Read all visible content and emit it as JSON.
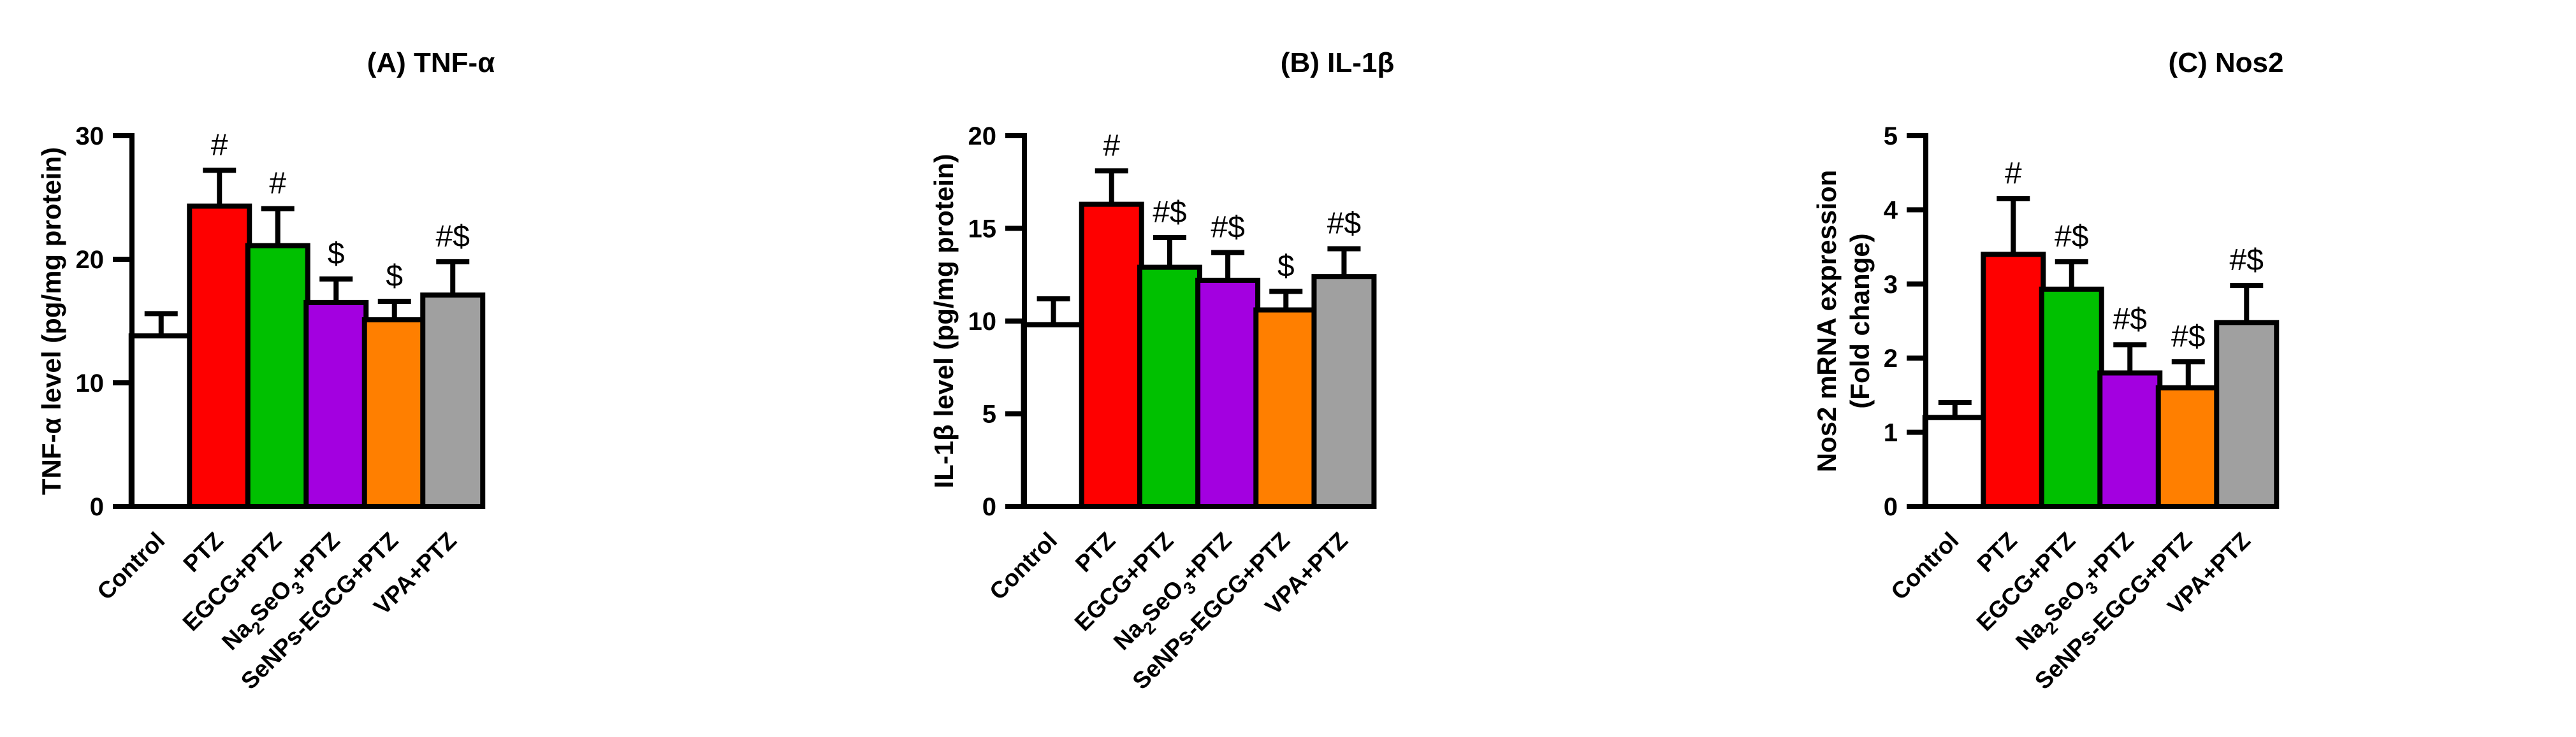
{
  "figure": {
    "background_color": "#ffffff",
    "axis_color": "#000000"
  },
  "chart_data": [
    {
      "type": "bar",
      "title": "(A) TNF-α",
      "ylabel": "TNF-α level (pg/mg protein)",
      "ylabel_lines": [
        "TNF-α level (pg/mg protein)"
      ],
      "xlabel": "",
      "ylim": [
        0,
        30
      ],
      "yticks": [
        0,
        10,
        20,
        30
      ],
      "categories": [
        "Control",
        "PTZ",
        "EGCG+PTZ",
        "Na2SeO3+PTZ",
        "SeNPs-EGCG+PTZ",
        "VPA+PTZ"
      ],
      "values": [
        13.8,
        24.3,
        21.1,
        16.5,
        15.1,
        17.1
      ],
      "errors": [
        1.8,
        2.9,
        3.0,
        1.9,
        1.5,
        2.7
      ],
      "annotations": [
        "",
        "#",
        "#",
        "$",
        "$",
        "#$"
      ],
      "colors": [
        "#ffffff",
        "#fe0000",
        "#00c000",
        "#a300e0",
        "#ff7f00",
        "#a0a0a0"
      ]
    },
    {
      "type": "bar",
      "title": "(B) IL-1β",
      "ylabel": "IL-1β level (pg/mg protein)",
      "ylabel_lines": [
        "IL-1β level (pg/mg protein)"
      ],
      "xlabel": "",
      "ylim": [
        0,
        20
      ],
      "yticks": [
        0,
        5,
        10,
        15,
        20
      ],
      "categories": [
        "Control",
        "PTZ",
        "EGCG+PTZ",
        "Na2SeO3+PTZ",
        "SeNPs-EGCG+PTZ",
        "VPA+PTZ"
      ],
      "values": [
        9.8,
        16.3,
        12.9,
        12.2,
        10.6,
        12.4
      ],
      "errors": [
        1.4,
        1.8,
        1.6,
        1.5,
        1.0,
        1.5
      ],
      "annotations": [
        "",
        "#",
        "#$",
        "#$",
        "$",
        "#$"
      ],
      "colors": [
        "#ffffff",
        "#fe0000",
        "#00c000",
        "#a300e0",
        "#ff7f00",
        "#a0a0a0"
      ]
    },
    {
      "type": "bar",
      "title": "(C) Nos2",
      "ylabel": "Nos2 mRNA expression (Fold change)",
      "ylabel_lines": [
        "Nos2 mRNA expression",
        "(Fold change)"
      ],
      "xlabel": "",
      "ylim": [
        0,
        5
      ],
      "yticks": [
        0,
        1,
        2,
        3,
        4,
        5
      ],
      "categories": [
        "Control",
        "PTZ",
        "EGCG+PTZ",
        "Na2SeO3+PTZ",
        "SeNPs-EGCG+PTZ",
        "VPA+PTZ"
      ],
      "values": [
        1.2,
        3.4,
        2.93,
        1.8,
        1.6,
        2.48
      ],
      "errors": [
        0.2,
        0.75,
        0.37,
        0.38,
        0.35,
        0.5
      ],
      "annotations": [
        "",
        "#",
        "#$",
        "#$",
        "#$",
        "#$"
      ],
      "colors": [
        "#ffffff",
        "#fe0000",
        "#00c000",
        "#a300e0",
        "#ff7f00",
        "#a0a0a0"
      ]
    }
  ]
}
